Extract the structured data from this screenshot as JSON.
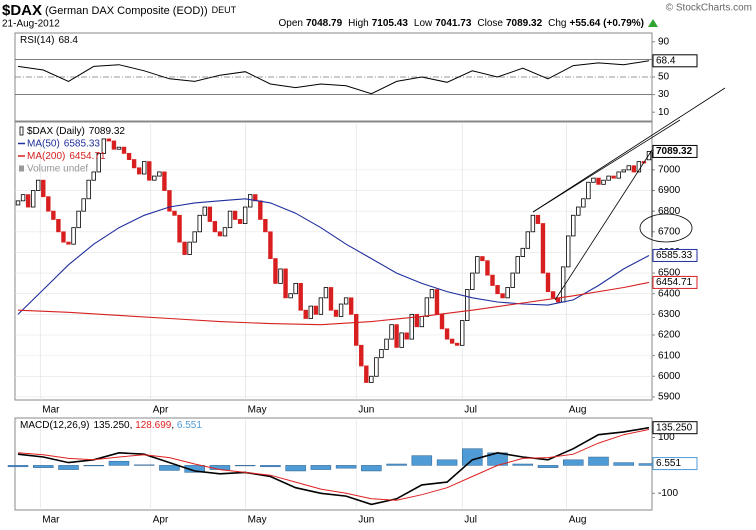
{
  "header": {
    "symbol": "$DAX",
    "name": "(German DAX Composite (EOD))",
    "exchange": "DEUT",
    "date": "21-Aug-2012",
    "source": "© StockCharts.com",
    "quote": [
      {
        "label": "Open",
        "value": 7048.79
      },
      {
        "label": "High",
        "value": 7105.43
      },
      {
        "label": "Low",
        "value": 7041.73
      },
      {
        "label": "Close",
        "value": 7089.32
      },
      {
        "label": "Chg",
        "value": "+55.64 (+0.79%)"
      }
    ]
  },
  "chart_data": [
    {
      "type": "candlestick",
      "xlim": [
        -0.6,
        125.6
      ],
      "ylim": [
        5885,
        7232
      ],
      "yticks": [
        5900,
        6000,
        6100,
        6200,
        6300,
        6400,
        6500,
        6600,
        6700,
        6800,
        6900,
        7000
      ],
      "xticks": [
        {
          "value": 4.4,
          "label": "Mar"
        },
        {
          "value": 26.3,
          "label": "Apr"
        },
        {
          "value": 45.1,
          "label": "May"
        },
        {
          "value": 67,
          "label": "Jun"
        },
        {
          "value": 88,
          "label": "Jul"
        },
        {
          "value": 108.7,
          "label": "Aug"
        }
      ],
      "grid": true,
      "up_color": "#000000",
      "down_color": "#d81e1e",
      "series": [
        {
          "name": "$DAX (Daily)",
          "open": [
            6830,
            6850,
            6880,
            6820,
            6900,
            6950,
            6870,
            6800,
            6760,
            6700,
            6650,
            6640,
            6720,
            6800,
            6860,
            6950,
            6990,
            7080,
            7150,
            7140,
            7100,
            7110,
            7080,
            7050,
            7010,
            6980,
            7040,
            6950,
            6970,
            6990,
            6900,
            6800,
            6780,
            6650,
            6590,
            6650,
            6700,
            6780,
            6820,
            6750,
            6700,
            6680,
            6720,
            6800,
            6760,
            6740,
            6820,
            6880,
            6850,
            6760,
            6700,
            6570,
            6450,
            6520,
            6380,
            6400,
            6450,
            6320,
            6280,
            6340,
            6300,
            6380,
            6430,
            6320,
            6290,
            6350,
            6380,
            6300,
            6150,
            6050,
            5970,
            6000,
            6090,
            6130,
            6180,
            6250,
            6140,
            6210,
            6180,
            6300,
            6240,
            6290,
            6380,
            6420,
            6300,
            6230,
            6180,
            6160,
            6150,
            6270,
            6420,
            6500,
            6580,
            6560,
            6490,
            6440,
            6400,
            6380,
            6430,
            6500,
            6580,
            6620,
            6700,
            6780,
            6740,
            6500,
            6410,
            6380,
            6360,
            6530,
            6680,
            6780,
            6820,
            6860,
            6940,
            6960,
            6930,
            6950,
            6970,
            6960,
            6990,
            7000,
            7020,
            6990,
            7040,
            7048.79
          ],
          "close": [
            6850,
            6880,
            6820,
            6900,
            6950,
            6870,
            6800,
            6760,
            6700,
            6650,
            6640,
            6720,
            6800,
            6860,
            6950,
            6990,
            7080,
            7150,
            7140,
            7100,
            7110,
            7080,
            7050,
            7010,
            6980,
            7040,
            6950,
            6970,
            6990,
            6900,
            6800,
            6780,
            6650,
            6590,
            6650,
            6700,
            6780,
            6820,
            6750,
            6700,
            6680,
            6720,
            6800,
            6760,
            6740,
            6820,
            6880,
            6850,
            6760,
            6700,
            6570,
            6450,
            6520,
            6380,
            6400,
            6450,
            6320,
            6280,
            6340,
            6300,
            6380,
            6430,
            6320,
            6290,
            6350,
            6380,
            6300,
            6150,
            6050,
            5970,
            6000,
            6090,
            6130,
            6180,
            6250,
            6140,
            6210,
            6180,
            6300,
            6240,
            6290,
            6380,
            6420,
            6300,
            6230,
            6180,
            6160,
            6150,
            6270,
            6420,
            6500,
            6580,
            6560,
            6490,
            6440,
            6400,
            6380,
            6430,
            6500,
            6580,
            6620,
            6700,
            6780,
            6740,
            6500,
            6410,
            6380,
            6360,
            6530,
            6680,
            6780,
            6820,
            6860,
            6940,
            6960,
            6930,
            6950,
            6970,
            6960,
            6990,
            7000,
            7020,
            6990,
            7040,
            7033.68,
            7089.32
          ]
        },
        {
          "name": "MA(50)",
          "color": "#1f2f9e",
          "x": [
            0,
            5,
            10,
            15,
            20,
            25,
            30,
            35,
            40,
            45,
            50,
            55,
            60,
            65,
            70,
            75,
            80,
            85,
            90,
            95,
            100,
            105,
            110,
            115,
            120,
            125
          ],
          "values": [
            6300,
            6420,
            6540,
            6640,
            6720,
            6780,
            6820,
            6840,
            6850,
            6860,
            6840,
            6790,
            6720,
            6640,
            6570,
            6500,
            6450,
            6410,
            6380,
            6360,
            6350,
            6345,
            6370,
            6440,
            6520,
            6585.33
          ]
        },
        {
          "name": "MA(200)",
          "color": "#d62020",
          "x": [
            0,
            10,
            20,
            30,
            40,
            50,
            60,
            70,
            80,
            90,
            100,
            110,
            120,
            125
          ],
          "values": [
            6320,
            6310,
            6295,
            6280,
            6265,
            6255,
            6250,
            6265,
            6290,
            6320,
            6355,
            6390,
            6430,
            6454.71
          ]
        },
        {
          "name": "Volume undef",
          "color": "#999999"
        }
      ]
    },
    {
      "type": "line",
      "xlim": [
        -0.6,
        125.6
      ],
      "ylim": [
        0,
        100
      ],
      "yticks": [
        90,
        70,
        50,
        30,
        10
      ],
      "guides": [
        70,
        50,
        30
      ],
      "series": [
        {
          "name": "RSI(14)",
          "color": "#000000",
          "x": [
            0,
            5,
            10,
            15,
            20,
            25,
            30,
            35,
            40,
            45,
            50,
            55,
            60,
            65,
            70,
            75,
            80,
            85,
            90,
            95,
            100,
            105,
            110,
            115,
            120,
            125
          ],
          "values": [
            62,
            58,
            45,
            62,
            64,
            57,
            48,
            45,
            52,
            56,
            42,
            38,
            42,
            40,
            31,
            45,
            50,
            44,
            57,
            50,
            60,
            48,
            63,
            66,
            64,
            68.4
          ]
        }
      ]
    },
    {
      "type": "macd",
      "xlim": [
        -0.6,
        125.6
      ],
      "ylim": [
        -160,
        170
      ],
      "yticks": [
        100,
        -100
      ],
      "label_separator": ", ",
      "xticks": [
        {
          "value": 4.4,
          "label": "Mar"
        },
        {
          "value": 26.3,
          "label": "Apr"
        },
        {
          "value": 45.1,
          "label": "May"
        },
        {
          "value": 67,
          "label": "Jun"
        },
        {
          "value": 88,
          "label": "Jul"
        },
        {
          "value": 108.7,
          "label": "Aug"
        }
      ],
      "x": [
        0,
        5,
        10,
        15,
        20,
        25,
        30,
        35,
        40,
        45,
        50,
        55,
        60,
        65,
        70,
        75,
        80,
        85,
        90,
        95,
        100,
        105,
        110,
        115,
        120,
        125
      ],
      "series": [
        {
          "name": "MACD(12,26,9)",
          "kind": "line",
          "color": "#000000",
          "values": [
            40,
            30,
            10,
            20,
            45,
            40,
            10,
            -20,
            -30,
            -25,
            -40,
            -80,
            -100,
            -110,
            -140,
            -120,
            -70,
            -60,
            20,
            45,
            30,
            20,
            60,
            110,
            120,
            135.25
          ],
          "value_labels": [
            null,
            null,
            null,
            null,
            null,
            null,
            null,
            null,
            null,
            null,
            null,
            null,
            null,
            null,
            null,
            null,
            null,
            null,
            null,
            null,
            null,
            null,
            null,
            null,
            null,
            "135.250"
          ]
        },
        {
          "kind": "line",
          "color": "#e02020",
          "values": [
            45,
            38,
            25,
            20,
            30,
            38,
            28,
            5,
            -15,
            -25,
            -35,
            -60,
            -85,
            -100,
            -120,
            -125,
            -105,
            -80,
            -40,
            0,
            25,
            28,
            40,
            80,
            110,
            128.699
          ]
        },
        {
          "kind": "bar",
          "color": "#4f9bd6",
          "values": [
            -5,
            -8,
            -15,
            0,
            15,
            2,
            -18,
            -25,
            -15,
            0,
            -5,
            -20,
            -15,
            -10,
            -20,
            5,
            35,
            20,
            60,
            45,
            5,
            -8,
            20,
            30,
            10,
            6.551
          ]
        }
      ]
    }
  ]
}
